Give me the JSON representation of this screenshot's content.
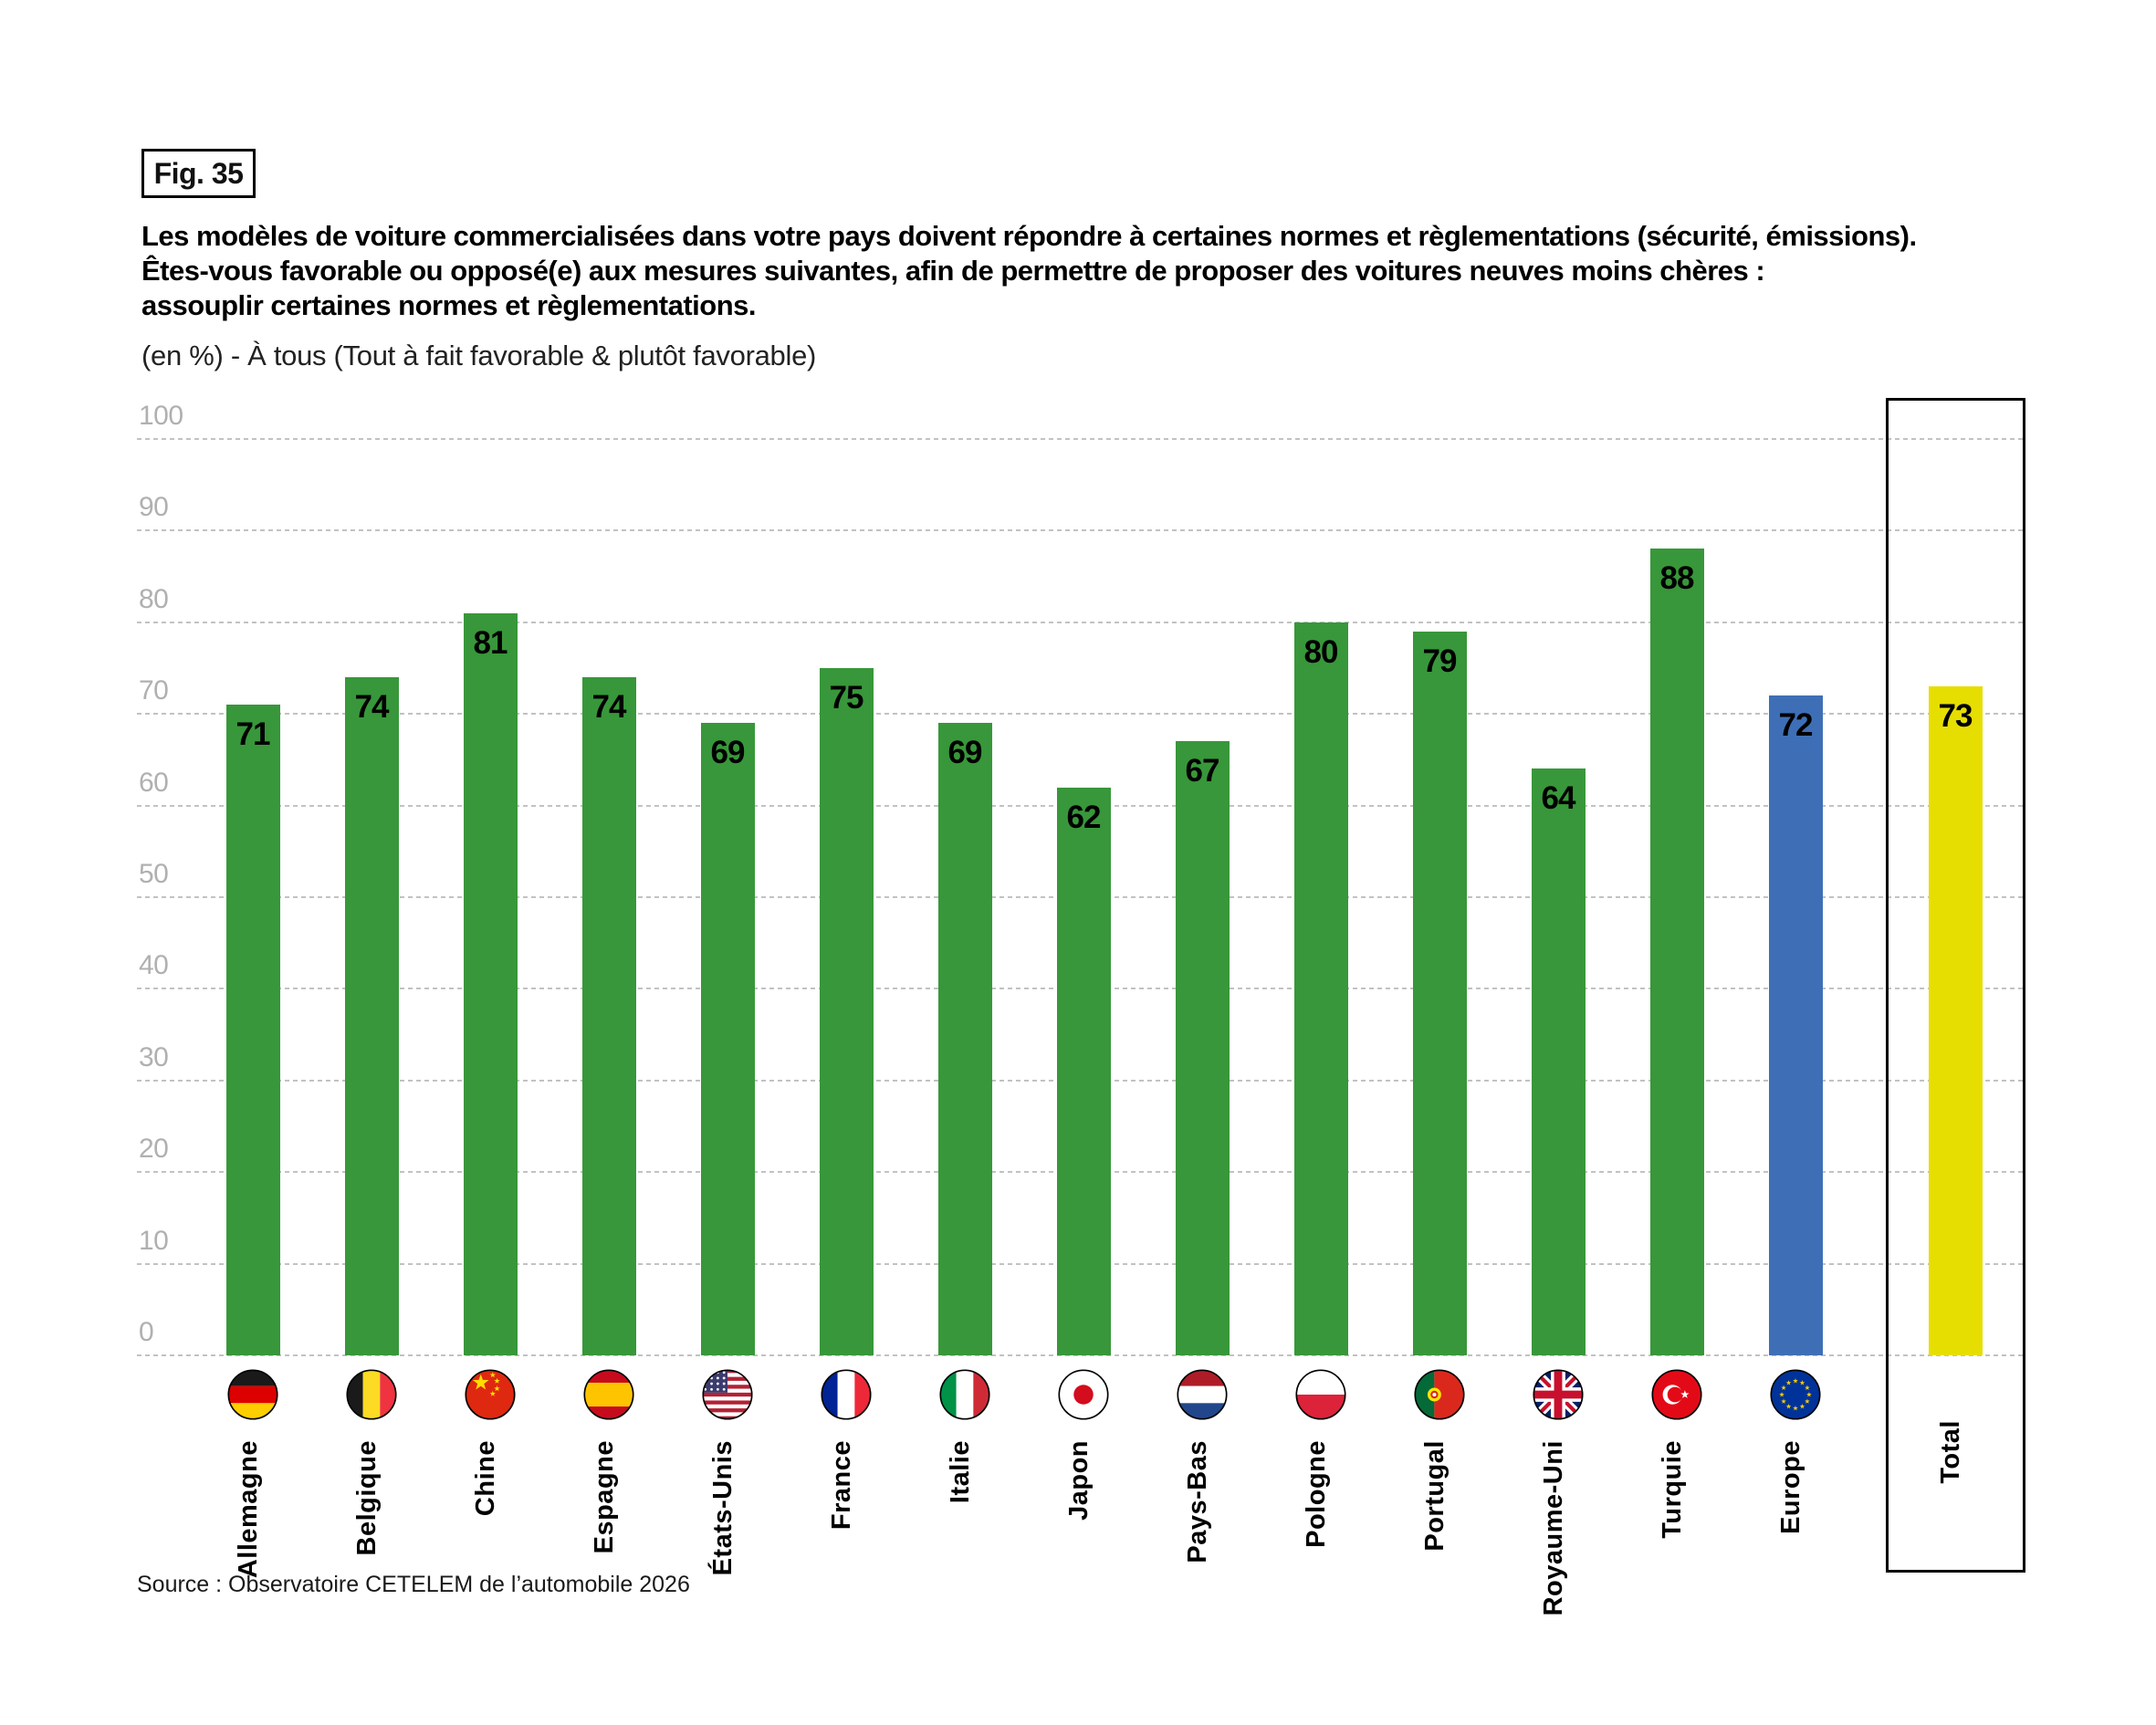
{
  "figure_label": "Fig. 35",
  "title": {
    "line1": "Les modèles de voiture commercialisées dans votre pays doivent répondre à certaines normes et règlementations (sécurité, émissions).",
    "line2": "Êtes-vous favorable ou opposé(e) aux mesures suivantes, afin de permettre de proposer des voitures neuves moins chères :",
    "line3": "assouplir certaines normes et règlementations."
  },
  "subtitle": "(en %) - À tous (Tout à fait favorable & plutôt favorable)",
  "source": "Source : Observatoire CETELEM de l’automobile 2026",
  "colors": {
    "green": "#38973a",
    "blue": "#3e6fb6",
    "yellow": "#e6de00",
    "axis_label": "#b0b0b0",
    "gridline": "#c2c2c2",
    "bar_label": "#000000",
    "box_border": "#000000"
  },
  "chart_data": {
    "type": "bar",
    "title": "Les modèles de voiture commercialisées dans votre pays doivent répondre à certaines normes et règlementations (sécurité, émissions). Êtes-vous favorable ou opposé(e) aux mesures suivantes, afin de permettre de proposer des voitures neuves moins chères : assouplir certaines normes et règlementations.",
    "subtitle": "(en %) - À tous (Tout à fait favorable & plutôt favorable)",
    "categories": [
      "Allemagne",
      "Belgique",
      "Chine",
      "Espagne",
      "États-Unis",
      "France",
      "Italie",
      "Japon",
      "Pays-Bas",
      "Pologne",
      "Portugal",
      "Royaume-Uni",
      "Turquie",
      "Europe",
      "Total"
    ],
    "values": [
      71,
      74,
      81,
      74,
      69,
      75,
      69,
      62,
      67,
      80,
      79,
      64,
      88,
      72,
      73
    ],
    "bar_colors": [
      "green",
      "green",
      "green",
      "green",
      "green",
      "green",
      "green",
      "green",
      "green",
      "green",
      "green",
      "green",
      "green",
      "blue",
      "yellow"
    ],
    "flags": [
      "de",
      "be",
      "cn",
      "es",
      "us",
      "fr",
      "it",
      "jp",
      "nl",
      "pl",
      "pt",
      "gb",
      "tr",
      "eu",
      null
    ],
    "xlabel": "",
    "ylabel": "",
    "ylim": [
      0,
      100
    ],
    "yticks": [
      0,
      10,
      20,
      30,
      40,
      50,
      60,
      70,
      80,
      90,
      100
    ],
    "grid": "horizontal-dashed",
    "legend": null,
    "highlight_box_category": "Total"
  }
}
